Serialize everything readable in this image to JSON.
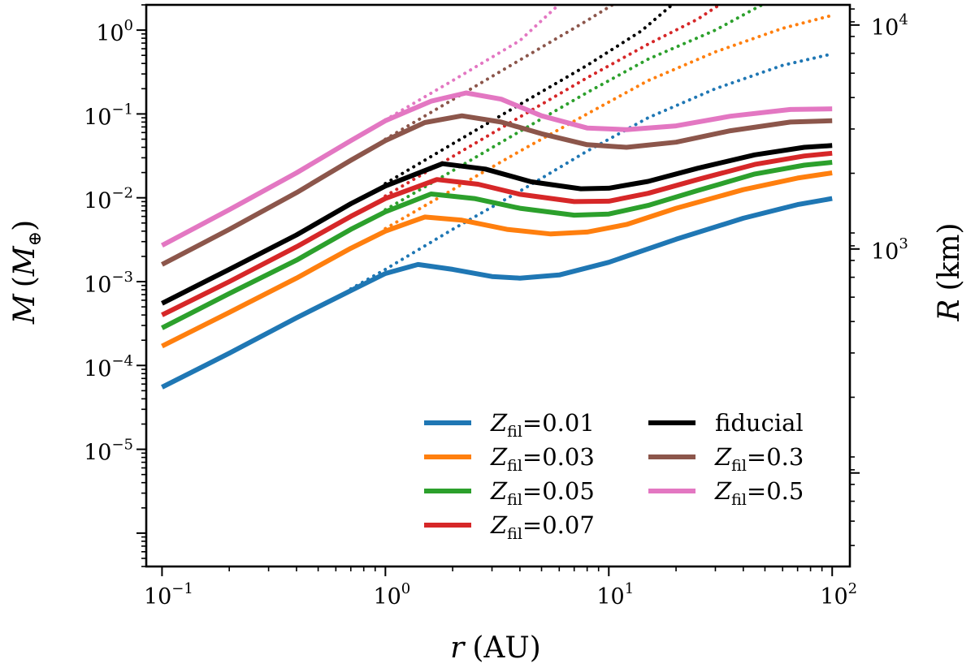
{
  "chart_data": {
    "type": "line",
    "xscale": "log",
    "yscale": "log",
    "xlim": [
      0.085,
      120
    ],
    "ylim": [
      4e-07,
      2.0
    ],
    "xticks": [
      {
        "value": 0.1,
        "base": "10",
        "exp": "−1"
      },
      {
        "value": 1,
        "base": "10",
        "exp": "0"
      },
      {
        "value": 10,
        "base": "10",
        "exp": "1"
      },
      {
        "value": 100,
        "base": "10",
        "exp": "2"
      }
    ],
    "yticks": [
      {
        "value": 1e-05,
        "base": "10",
        "exp": "−5"
      },
      {
        "value": 0.0001,
        "base": "10",
        "exp": "−4"
      },
      {
        "value": 0.001,
        "base": "10",
        "exp": "−3"
      },
      {
        "value": 0.01,
        "base": "10",
        "exp": "−2"
      },
      {
        "value": 0.1,
        "base": "10",
        "exp": "−1"
      },
      {
        "value": 1,
        "base": "10",
        "exp": "0"
      }
    ],
    "y2ticks": [
      {
        "value": 0.00245,
        "base": "10",
        "exp": "3"
      },
      {
        "value": 1.15,
        "base": "10",
        "exp": "4"
      }
    ],
    "xlabel": {
      "symbol": "r",
      "unit": "(AU)"
    },
    "ylabel": {
      "symbol": "M",
      "unit_open": "(",
      "unit_symbol": "M",
      "unit_sub": "⊕",
      "unit_close": ")"
    },
    "y2label": {
      "symbol": "R",
      "unit": "(km)"
    },
    "series": [
      {
        "name": "Zfil=0.01",
        "legend_var": "Z",
        "legend_sub": "fil",
        "legend_val": "=0.01",
        "color": "#1f77b4",
        "solid": [
          [
            0.1,
            5.5e-05
          ],
          [
            0.2,
            0.00014
          ],
          [
            0.4,
            0.00037
          ],
          [
            0.7,
            0.00078
          ],
          [
            1.0,
            0.00125
          ],
          [
            1.4,
            0.0016
          ],
          [
            2.0,
            0.0014
          ],
          [
            3.0,
            0.00115
          ],
          [
            4.0,
            0.0011
          ],
          [
            6.0,
            0.0012
          ],
          [
            10,
            0.0017
          ],
          [
            20,
            0.0032
          ],
          [
            40,
            0.0057
          ],
          [
            70,
            0.0083
          ],
          [
            100,
            0.0098
          ]
        ],
        "dotted": [
          [
            0.7,
            0.00082
          ],
          [
            1.0,
            0.0014
          ],
          [
            2.0,
            0.0042
          ],
          [
            4.0,
            0.012
          ],
          [
            8.0,
            0.036
          ],
          [
            15,
            0.09
          ],
          [
            30,
            0.2
          ],
          [
            60,
            0.38
          ],
          [
            100,
            0.52
          ]
        ]
      },
      {
        "name": "Zfil=0.03",
        "legend_var": "Z",
        "legend_sub": "fil",
        "legend_val": "=0.03",
        "color": "#ff7f0e",
        "solid": [
          [
            0.1,
            0.00017
          ],
          [
            0.2,
            0.00043
          ],
          [
            0.4,
            0.0011
          ],
          [
            0.7,
            0.0025
          ],
          [
            1.0,
            0.004
          ],
          [
            1.5,
            0.0059
          ],
          [
            2.2,
            0.0054
          ],
          [
            3.5,
            0.0042
          ],
          [
            5.5,
            0.0037
          ],
          [
            8,
            0.0039
          ],
          [
            12,
            0.0048
          ],
          [
            20,
            0.0075
          ],
          [
            40,
            0.0125
          ],
          [
            70,
            0.0172
          ],
          [
            100,
            0.0198
          ]
        ],
        "dotted": [
          [
            1.0,
            0.0043
          ],
          [
            2,
            0.0125
          ],
          [
            4,
            0.036
          ],
          [
            8,
            0.1
          ],
          [
            15,
            0.25
          ],
          [
            30,
            0.55
          ],
          [
            60,
            1.05
          ],
          [
            100,
            1.5
          ]
        ]
      },
      {
        "name": "Zfil=0.05",
        "legend_var": "Z",
        "legend_sub": "fil",
        "legend_val": "=0.05",
        "color": "#2ca02c",
        "solid": [
          [
            0.1,
            0.00028
          ],
          [
            0.2,
            0.00072
          ],
          [
            0.4,
            0.0018
          ],
          [
            0.7,
            0.0042
          ],
          [
            1.0,
            0.0068
          ],
          [
            1.6,
            0.0111
          ],
          [
            2.5,
            0.0098
          ],
          [
            4,
            0.0075
          ],
          [
            7,
            0.0062
          ],
          [
            10,
            0.0064
          ],
          [
            15,
            0.0081
          ],
          [
            25,
            0.0122
          ],
          [
            45,
            0.0192
          ],
          [
            75,
            0.0245
          ],
          [
            100,
            0.0265
          ]
        ],
        "dotted": [
          [
            1.0,
            0.0072
          ],
          [
            2,
            0.021
          ],
          [
            4,
            0.062
          ],
          [
            8,
            0.18
          ],
          [
            15,
            0.45
          ],
          [
            30,
            1.0
          ],
          [
            45,
            1.8
          ],
          [
            52,
            2.2
          ]
        ]
      },
      {
        "name": "Zfil=0.07",
        "legend_var": "Z",
        "legend_sub": "fil",
        "legend_val": "=0.07",
        "color": "#d62728",
        "solid": [
          [
            0.1,
            0.0004
          ],
          [
            0.2,
            0.001
          ],
          [
            0.4,
            0.0026
          ],
          [
            0.7,
            0.006
          ],
          [
            1.0,
            0.0098
          ],
          [
            1.7,
            0.0165
          ],
          [
            2.6,
            0.0145
          ],
          [
            4,
            0.011
          ],
          [
            7,
            0.009
          ],
          [
            10,
            0.0091
          ],
          [
            15,
            0.0113
          ],
          [
            25,
            0.0165
          ],
          [
            45,
            0.025
          ],
          [
            75,
            0.0315
          ],
          [
            100,
            0.034
          ]
        ],
        "dotted": [
          [
            1.0,
            0.0105
          ],
          [
            2,
            0.031
          ],
          [
            4,
            0.092
          ],
          [
            8,
            0.27
          ],
          [
            15,
            0.68
          ],
          [
            25,
            1.35
          ],
          [
            33,
            2.2
          ]
        ]
      },
      {
        "name": "fiducial",
        "legend_text": "fiducial",
        "color": "#000000",
        "solid": [
          [
            0.1,
            0.00055
          ],
          [
            0.2,
            0.0014
          ],
          [
            0.4,
            0.0036
          ],
          [
            0.7,
            0.0085
          ],
          [
            1.0,
            0.0138
          ],
          [
            1.8,
            0.0255
          ],
          [
            2.8,
            0.022
          ],
          [
            4.5,
            0.0155
          ],
          [
            7.5,
            0.0128
          ],
          [
            10,
            0.013
          ],
          [
            15,
            0.0157
          ],
          [
            25,
            0.0225
          ],
          [
            45,
            0.0325
          ],
          [
            75,
            0.04
          ],
          [
            100,
            0.042
          ]
        ],
        "dotted": [
          [
            1.0,
            0.0148
          ],
          [
            2,
            0.044
          ],
          [
            4,
            0.13
          ],
          [
            8,
            0.38
          ],
          [
            14,
            0.98
          ],
          [
            20,
            2.2
          ]
        ]
      },
      {
        "name": "Zfil=0.3",
        "legend_var": "Z",
        "legend_sub": "fil",
        "legend_val": "=0.3",
        "color": "#8c564b",
        "solid": [
          [
            0.1,
            0.0016
          ],
          [
            0.2,
            0.0042
          ],
          [
            0.4,
            0.0115
          ],
          [
            0.7,
            0.028
          ],
          [
            1.0,
            0.048
          ],
          [
            1.5,
            0.079
          ],
          [
            2.2,
            0.095
          ],
          [
            3.3,
            0.08
          ],
          [
            5,
            0.058
          ],
          [
            8,
            0.043
          ],
          [
            12,
            0.04
          ],
          [
            20,
            0.046
          ],
          [
            35,
            0.063
          ],
          [
            65,
            0.08
          ],
          [
            100,
            0.083
          ]
        ],
        "dotted": [
          [
            1.0,
            0.05
          ],
          [
            2,
            0.148
          ],
          [
            4,
            0.44
          ],
          [
            8,
            1.3
          ],
          [
            11,
            2.2
          ]
        ]
      },
      {
        "name": "Zfil=0.5",
        "legend_var": "Z",
        "legend_sub": "fil",
        "legend_val": "=0.5",
        "color": "#e377c2",
        "solid": [
          [
            0.1,
            0.0027
          ],
          [
            0.2,
            0.0072
          ],
          [
            0.4,
            0.0198
          ],
          [
            0.7,
            0.048
          ],
          [
            1.0,
            0.083
          ],
          [
            1.6,
            0.142
          ],
          [
            2.3,
            0.178
          ],
          [
            3.3,
            0.15
          ],
          [
            5,
            0.095
          ],
          [
            8,
            0.068
          ],
          [
            12,
            0.065
          ],
          [
            20,
            0.072
          ],
          [
            35,
            0.094
          ],
          [
            65,
            0.113
          ],
          [
            100,
            0.115
          ]
        ],
        "dotted": [
          [
            1.0,
            0.085
          ],
          [
            2,
            0.25
          ],
          [
            4,
            0.75
          ],
          [
            6.2,
            2.2
          ]
        ]
      }
    ]
  }
}
